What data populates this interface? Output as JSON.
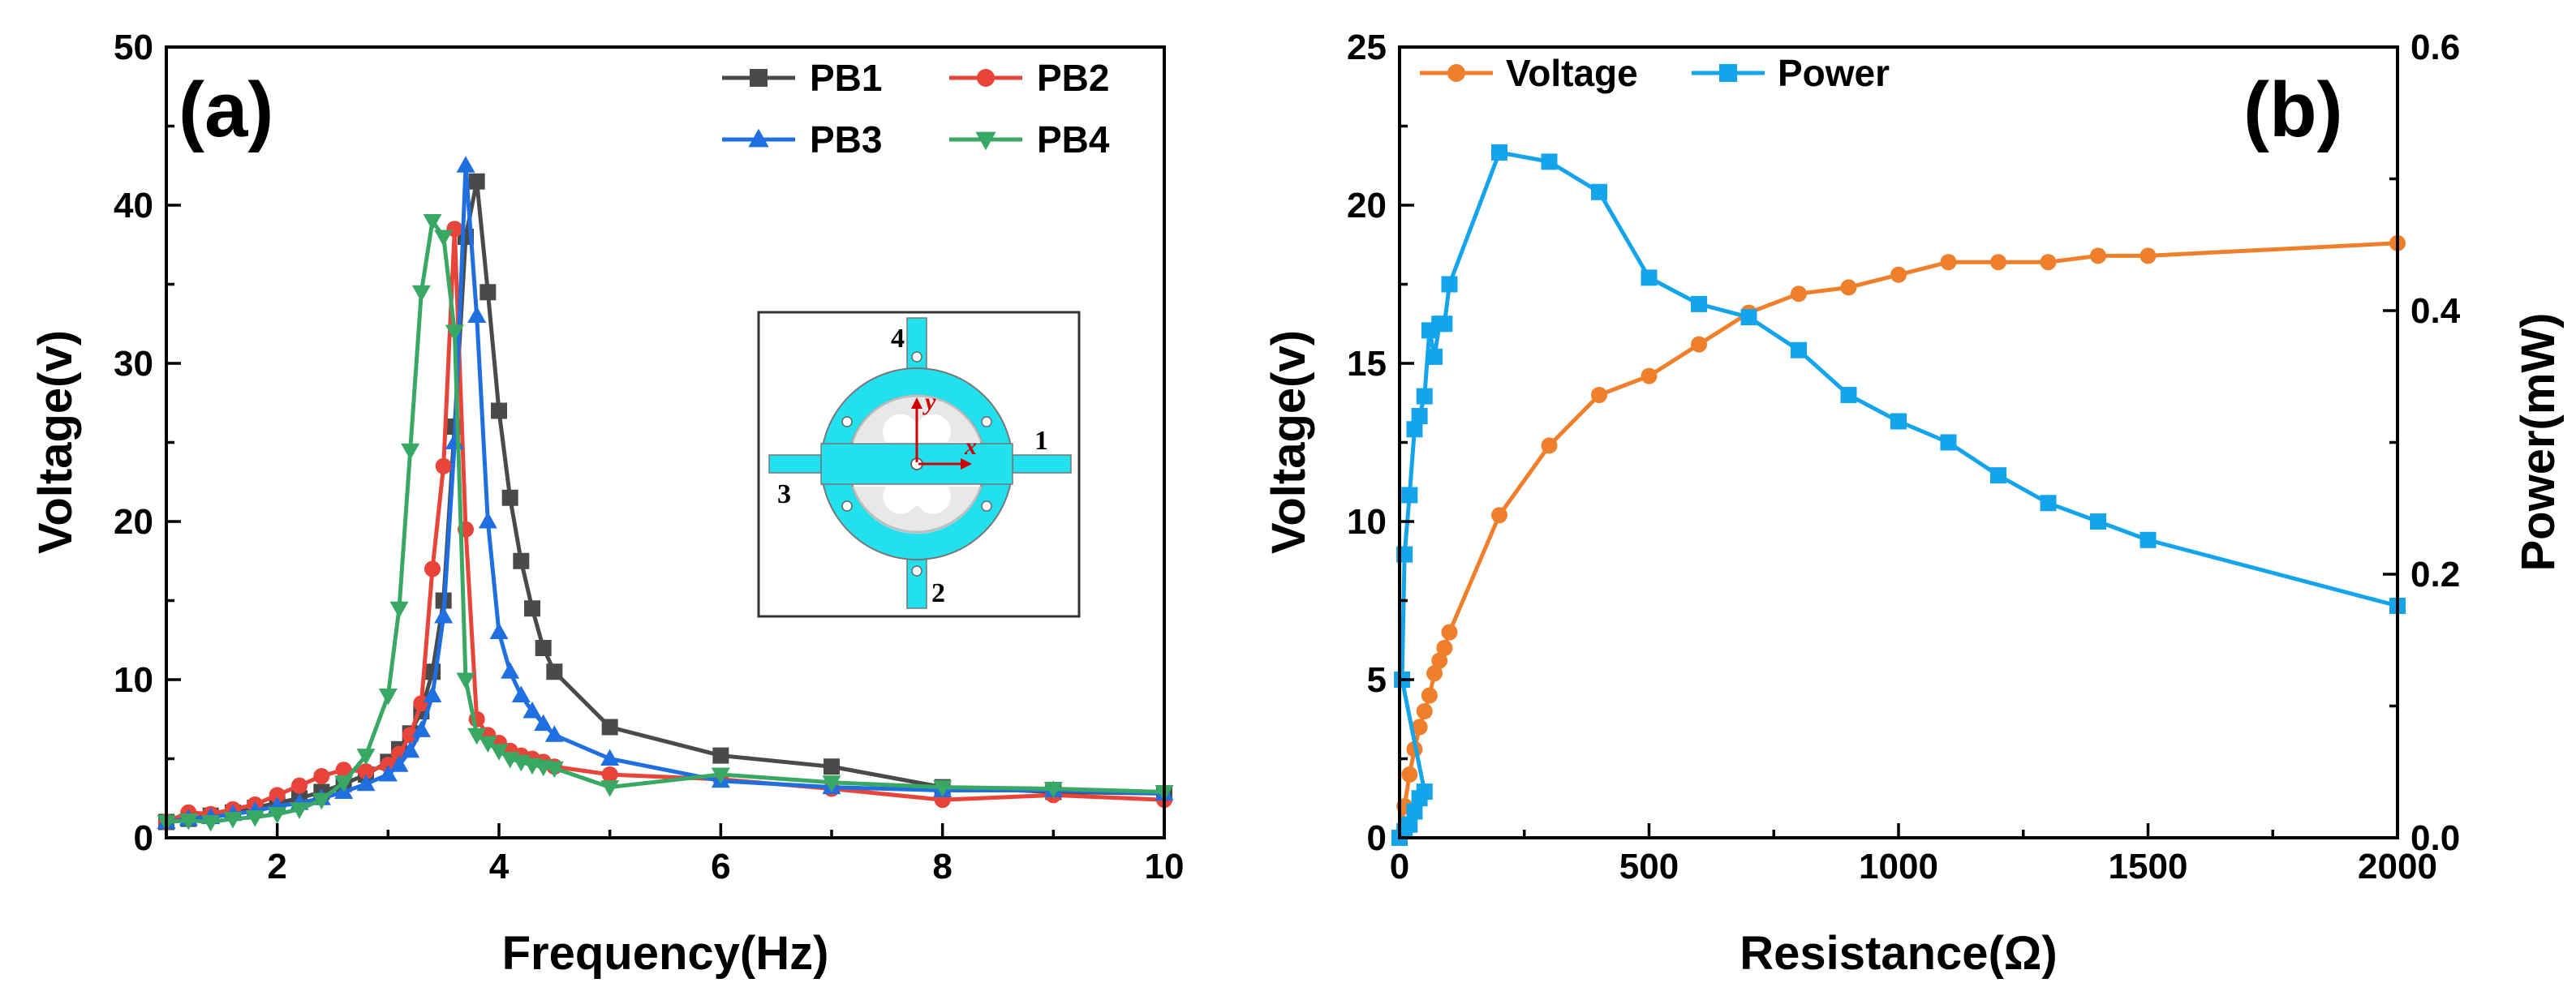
{
  "colors": {
    "PB1": "#4a4a4a",
    "PB2": "#e8443a",
    "PB3": "#1f6fe0",
    "PB4": "#3aa865",
    "Voltage": "#f07f2c",
    "Power": "#14a4ec",
    "inset_fill": "#22e0ee",
    "inset_arrow": "#d10000"
  },
  "inset": {
    "labels": [
      "1",
      "2",
      "3",
      "4"
    ],
    "x_axis": "x",
    "y_axis": "y"
  },
  "chart_data": [
    {
      "type": "line",
      "panel_label": "(a)",
      "title": "",
      "xlabel": "Frequency(Hz)",
      "ylabel": "Voltage(v)",
      "xlim": [
        1,
        10
      ],
      "ylim": [
        0,
        50
      ],
      "xticks": [
        2,
        4,
        6,
        8,
        10
      ],
      "yticks": [
        0,
        10,
        20,
        30,
        40,
        50
      ],
      "legend_position": "top-right",
      "series": [
        {
          "name": "PB1",
          "marker": "square",
          "color": "#4a4a4a",
          "x": [
            1,
            1.2,
            1.4,
            1.6,
            1.8,
            2,
            2.2,
            2.4,
            2.6,
            2.8,
            3,
            3.1,
            3.2,
            3.3,
            3.4,
            3.5,
            3.6,
            3.7,
            3.8,
            3.9,
            4,
            4.1,
            4.2,
            4.3,
            4.4,
            4.5,
            5,
            6,
            7,
            8,
            9,
            10
          ],
          "values": [
            1.0,
            1.2,
            1.4,
            1.6,
            1.9,
            2.2,
            2.5,
            2.9,
            3.4,
            4.0,
            4.8,
            5.6,
            6.6,
            8.0,
            10.5,
            15.0,
            26.0,
            38.0,
            41.5,
            34.5,
            27.0,
            21.5,
            17.5,
            14.5,
            12.0,
            10.5,
            7.0,
            5.2,
            4.5,
            3.2,
            2.9,
            2.8
          ]
        },
        {
          "name": "PB2",
          "marker": "circle",
          "color": "#e8443a",
          "x": [
            1,
            1.2,
            1.4,
            1.6,
            1.8,
            2,
            2.2,
            2.4,
            2.6,
            2.8,
            3,
            3.1,
            3.2,
            3.3,
            3.4,
            3.5,
            3.6,
            3.7,
            3.8,
            3.9,
            4,
            4.1,
            4.2,
            4.3,
            4.4,
            4.5,
            5,
            6,
            7,
            8,
            9,
            10
          ],
          "values": [
            1.0,
            1.6,
            1.5,
            1.8,
            2.1,
            2.7,
            3.3,
            3.9,
            4.3,
            4.2,
            4.6,
            5.3,
            6.5,
            8.5,
            17.0,
            23.5,
            38.5,
            19.5,
            7.5,
            6.5,
            6.0,
            5.5,
            5.2,
            5.0,
            4.8,
            4.5,
            4.0,
            3.7,
            3.1,
            2.4,
            2.7,
            2.4
          ]
        },
        {
          "name": "PB3",
          "marker": "triangle-up",
          "color": "#1f6fe0",
          "x": [
            1,
            1.2,
            1.4,
            1.6,
            1.8,
            2,
            2.2,
            2.4,
            2.6,
            2.8,
            3,
            3.1,
            3.2,
            3.3,
            3.4,
            3.5,
            3.6,
            3.7,
            3.8,
            3.9,
            4,
            4.1,
            4.2,
            4.3,
            4.4,
            4.5,
            5,
            6,
            7,
            8,
            9,
            10
          ],
          "values": [
            1.0,
            1.2,
            1.3,
            1.5,
            1.7,
            2.0,
            2.2,
            2.5,
            2.9,
            3.4,
            4.0,
            4.6,
            5.5,
            6.8,
            9.0,
            14.0,
            25.0,
            42.5,
            33.0,
            20.0,
            13.0,
            10.5,
            9.0,
            8.0,
            7.2,
            6.5,
            5.0,
            3.6,
            3.2,
            3.0,
            3.0,
            2.8
          ]
        },
        {
          "name": "PB4",
          "marker": "triangle-down",
          "color": "#3aa865",
          "x": [
            1,
            1.2,
            1.4,
            1.6,
            1.8,
            2,
            2.2,
            2.4,
            2.6,
            2.8,
            3,
            3.1,
            3.2,
            3.3,
            3.4,
            3.5,
            3.6,
            3.7,
            3.8,
            3.9,
            4,
            4.1,
            4.2,
            4.3,
            4.4,
            4.5,
            5,
            6,
            7,
            8,
            9,
            10
          ],
          "values": [
            1.0,
            1.1,
            1.0,
            1.2,
            1.3,
            1.5,
            1.8,
            2.4,
            3.5,
            5.2,
            9.0,
            14.5,
            24.5,
            34.5,
            39.0,
            38.0,
            32.0,
            10.0,
            6.5,
            6.0,
            5.5,
            5.0,
            4.8,
            4.6,
            4.5,
            4.4,
            3.2,
            4.0,
            3.5,
            3.2,
            3.1,
            2.9
          ]
        }
      ]
    },
    {
      "type": "line",
      "panel_label": "(b)",
      "title": "",
      "xlabel": "Resistance(Ω)",
      "ylabel": "Voltage(v)",
      "y2label": "Power(mW)",
      "xlim": [
        0,
        2000
      ],
      "ylim": [
        0,
        25
      ],
      "y2lim": [
        0,
        0.6
      ],
      "xticks": [
        0,
        500,
        1000,
        1500,
        2000
      ],
      "yticks": [
        0,
        5,
        10,
        15,
        20,
        25
      ],
      "y2ticks": [
        0.0,
        0.2,
        0.4,
        0.6
      ],
      "legend_position": "top-left",
      "series": [
        {
          "name": "Voltage",
          "axis": "left",
          "marker": "circle",
          "color": "#f07f2c",
          "x": [
            0,
            10,
            20,
            30,
            40,
            50,
            60,
            70,
            80,
            90,
            100,
            200,
            300,
            400,
            500,
            600,
            700,
            800,
            900,
            1000,
            1100,
            1200,
            1300,
            1400,
            1500,
            2000
          ],
          "values": [
            0.0,
            1.0,
            2.0,
            2.8,
            3.5,
            4.0,
            4.5,
            5.2,
            5.6,
            6.0,
            6.5,
            10.2,
            12.4,
            14.0,
            14.6,
            15.6,
            16.6,
            17.2,
            17.4,
            17.8,
            18.2,
            18.2,
            18.2,
            18.4,
            18.4,
            18.8
          ]
        },
        {
          "name": "Power",
          "axis": "right",
          "marker": "square",
          "color": "#14a4ec",
          "x": [
            0,
            10,
            20,
            30,
            40,
            50,
            5,
            10,
            20,
            30,
            40,
            50,
            60,
            70,
            80,
            90,
            100,
            200,
            300,
            400,
            500,
            600,
            700,
            800,
            900,
            1000,
            1100,
            1200,
            1300,
            1400,
            1500,
            2000
          ],
          "values": [
            0.0,
            0.005,
            0.01,
            0.02,
            0.03,
            0.035,
            0.12,
            0.215,
            0.26,
            0.31,
            0.32,
            0.335,
            0.385,
            0.365,
            0.39,
            0.39,
            0.42,
            0.52,
            0.513,
            0.49,
            0.425,
            0.405,
            0.395,
            0.37,
            0.336,
            0.316,
            0.3,
            0.275,
            0.254,
            0.24,
            0.226,
            0.176
          ]
        }
      ]
    }
  ]
}
